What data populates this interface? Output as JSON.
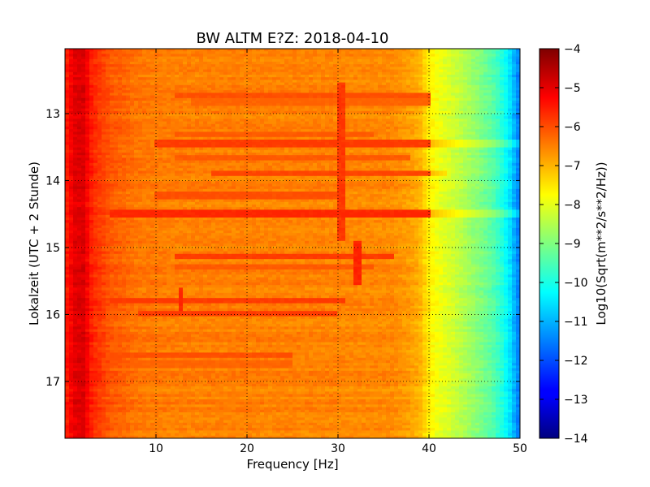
{
  "chart_data": {
    "type": "heatmap",
    "title": "BW ALTM E?Z: 2018-04-10",
    "xlabel": "Frequency [Hz]",
    "ylabel": "Lokalzeit (UTC + 2 Stunde)",
    "colorbar_label": "Log10(Sqrt(m**2/s**2/Hz))",
    "colormap": "jet",
    "xlim": [
      0,
      50
    ],
    "ylim": [
      12.03,
      17.85
    ],
    "y_inverted": true,
    "clim": [
      -14,
      -4
    ],
    "grid": true,
    "x_ticks": [
      10,
      20,
      30,
      40,
      50
    ],
    "y_ticks": [
      13,
      14,
      15,
      16,
      17
    ],
    "colorbar_ticks": [
      -4,
      -5,
      -6,
      -7,
      -8,
      -9,
      -10,
      -11,
      -12,
      -13,
      -14
    ],
    "frequency_profile_hz": [
      0,
      1,
      2,
      3,
      5,
      8,
      12,
      20,
      30,
      36,
      38,
      39,
      40,
      41,
      43,
      45,
      47,
      48,
      49,
      49.5,
      50
    ],
    "frequency_profile_value": [
      -5.6,
      -5.0,
      -4.9,
      -5.6,
      -6.1,
      -6.4,
      -6.5,
      -6.5,
      -6.55,
      -6.6,
      -6.8,
      -7.0,
      -7.6,
      -7.9,
      -8.3,
      -8.8,
      -9.4,
      -9.9,
      -10.6,
      -11.2,
      -11.6
    ],
    "bands": [
      {
        "time": 12.72,
        "fmin": 12,
        "fmax": 40,
        "value": -6.0
      },
      {
        "time": 12.83,
        "fmin": 14,
        "fmax": 40,
        "value": -6.2
      },
      {
        "time": 13.3,
        "fmin": 12,
        "fmax": 34,
        "value": -6.1
      },
      {
        "time": 13.45,
        "fmin": 10,
        "fmax": 50,
        "value": -5.8
      },
      {
        "time": 13.65,
        "fmin": 12,
        "fmax": 38,
        "value": -6.1
      },
      {
        "time": 13.9,
        "fmin": 16,
        "fmax": 42,
        "value": -5.9
      },
      {
        "time": 14.22,
        "fmin": 10,
        "fmax": 30,
        "value": -6.0
      },
      {
        "time": 14.5,
        "fmin": 5,
        "fmax": 50,
        "value": -5.6
      },
      {
        "time": 15.13,
        "fmin": 12,
        "fmax": 36,
        "value": -5.8
      },
      {
        "time": 15.3,
        "fmin": 12,
        "fmax": 34,
        "value": -6.1
      },
      {
        "time": 15.8,
        "fmin": 5,
        "fmax": 31,
        "value": -5.8
      },
      {
        "time": 15.98,
        "fmin": 8,
        "fmax": 30,
        "value": -5.8
      },
      {
        "time": 16.62,
        "fmin": 5,
        "fmax": 25,
        "value": -6.0
      },
      {
        "time": 16.75,
        "fmin": 5,
        "fmax": 25,
        "value": -6.2
      }
    ],
    "vertical_lines": [
      {
        "freq": 30.4,
        "tmin": 12.55,
        "tmax": 14.9,
        "value": -5.8
      },
      {
        "freq": 32.1,
        "tmin": 14.9,
        "tmax": 15.55,
        "value": -5.6
      },
      {
        "freq": 12.6,
        "tmin": 15.6,
        "tmax": 15.95,
        "value": -5.6
      }
    ]
  }
}
